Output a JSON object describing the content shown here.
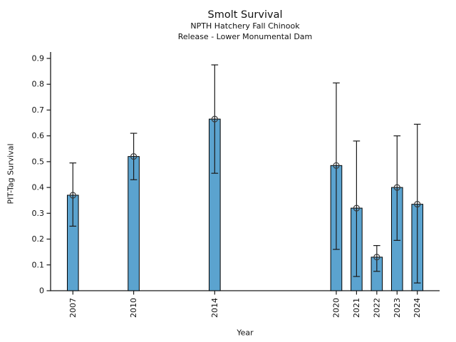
{
  "chart_data": {
    "type": "bar",
    "title": "Smolt Survival",
    "subtitle_line1": "NPTH Hatchery Fall Chinook",
    "subtitle_line2": "Release - Lower Monumental Dam",
    "xlabel": "Year",
    "ylabel": "PIT-Tag Survival",
    "x": [
      2007,
      2010,
      2014,
      2020,
      2021,
      2022,
      2023,
      2024
    ],
    "x_tick_labels": [
      "2007",
      "2010",
      "2014",
      "2020",
      "2021",
      "2022",
      "2023",
      "2024"
    ],
    "values": [
      0.37,
      0.52,
      0.665,
      0.485,
      0.32,
      0.13,
      0.4,
      0.335
    ],
    "error_low": [
      0.25,
      0.43,
      0.455,
      0.16,
      0.055,
      0.075,
      0.195,
      0.03
    ],
    "error_high": [
      0.495,
      0.61,
      0.875,
      0.805,
      0.58,
      0.175,
      0.6,
      0.645
    ],
    "ylim": [
      0,
      0.9
    ],
    "xlim": [
      2005.9,
      2025.1
    ],
    "yticks": [
      0,
      0.1,
      0.2,
      0.3,
      0.4,
      0.5,
      0.6,
      0.7,
      0.8,
      0.9
    ],
    "ytick_labels": [
      "0",
      "0.1",
      "0.2",
      "0.3",
      "0.4",
      "0.5",
      "0.6",
      "0.7",
      "0.8",
      "0.9"
    ],
    "bar_color": "#5ba3cf",
    "bar_edge_color": "#000000",
    "error_color": "#1a1a1a",
    "marker": "open-circle",
    "marker_edge_color": "#3a3a3a",
    "grid": false,
    "legend": null
  }
}
